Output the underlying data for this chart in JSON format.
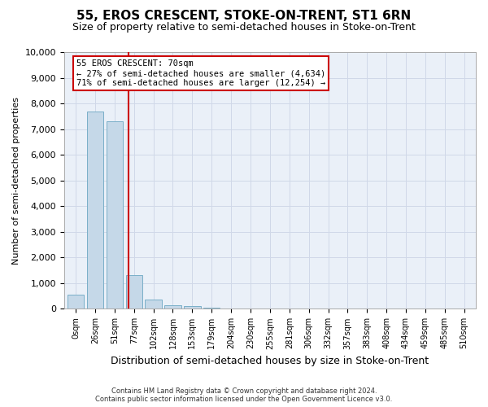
{
  "title": "55, EROS CRESCENT, STOKE-ON-TRENT, ST1 6RN",
  "subtitle": "Size of property relative to semi-detached houses in Stoke-on-Trent",
  "xlabel": "Distribution of semi-detached houses by size in Stoke-on-Trent",
  "ylabel": "Number of semi-detached properties",
  "categories": [
    "0sqm",
    "26sqm",
    "51sqm",
    "77sqm",
    "102sqm",
    "128sqm",
    "153sqm",
    "179sqm",
    "204sqm",
    "230sqm",
    "255sqm",
    "281sqm",
    "306sqm",
    "332sqm",
    "357sqm",
    "383sqm",
    "408sqm",
    "434sqm",
    "459sqm",
    "485sqm",
    "510sqm"
  ],
  "bar_values": [
    550,
    7700,
    7300,
    1300,
    350,
    150,
    100,
    60,
    0,
    0,
    0,
    0,
    0,
    0,
    0,
    0,
    0,
    0,
    0,
    0,
    0
  ],
  "bar_color": "#c5d8e8",
  "bar_edge_color": "#7aafc8",
  "property_size": 70,
  "annotation_title": "55 EROS CRESCENT: 70sqm",
  "annotation_line1": "← 27% of semi-detached houses are smaller (4,634)",
  "annotation_line2": "71% of semi-detached houses are larger (12,254) →",
  "annotation_box_color": "#ffffff",
  "annotation_box_edge_color": "#cc0000",
  "property_line_color": "#cc0000",
  "ylim": [
    0,
    10000
  ],
  "yticks": [
    0,
    1000,
    2000,
    3000,
    4000,
    5000,
    6000,
    7000,
    8000,
    9000,
    10000
  ],
  "footer_line1": "Contains HM Land Registry data © Crown copyright and database right 2024.",
  "footer_line2": "Contains public sector information licensed under the Open Government Licence v3.0.",
  "bg_color": "#ffffff",
  "grid_color": "#d0d8e8",
  "ax_bg_color": "#eaf0f8",
  "title_fontsize": 11,
  "subtitle_fontsize": 9,
  "bar_width": 0.85
}
